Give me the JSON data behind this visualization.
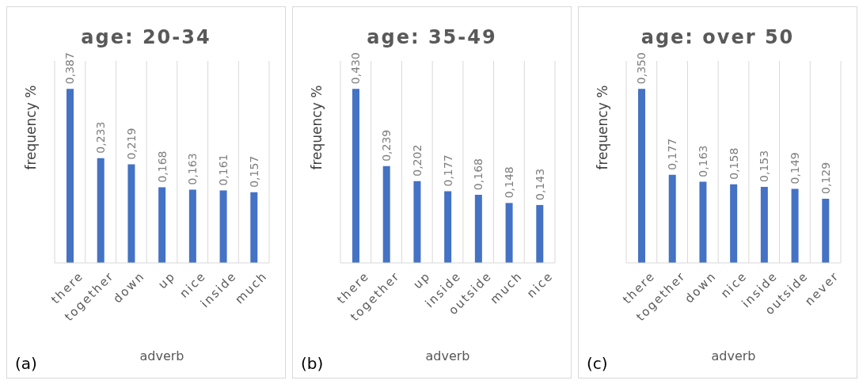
{
  "chart_data": [
    {
      "type": "bar",
      "title": "age: 20-34",
      "xlabel": "adverb",
      "ylabel": "frequency %",
      "categories": [
        "there",
        "together",
        "down",
        "up",
        "nice",
        "inside",
        "much"
      ],
      "values": [
        0.387,
        0.233,
        0.219,
        0.168,
        0.163,
        0.161,
        0.157
      ],
      "value_labels": [
        "0,387",
        "0,233",
        "0,219",
        "0,168",
        "0,163",
        "0,161",
        "0,157"
      ],
      "color": "#4472c4",
      "grid": "x",
      "annotations": [
        "(a)"
      ]
    },
    {
      "type": "bar",
      "title": "age: 35-49",
      "xlabel": "adverb",
      "ylabel": "frequency %",
      "categories": [
        "there",
        "together",
        "up",
        "inside",
        "outside",
        "much",
        "nice"
      ],
      "values": [
        0.43,
        0.239,
        0.202,
        0.177,
        0.168,
        0.148,
        0.143
      ],
      "value_labels": [
        "0,430",
        "0,239",
        "0,202",
        "0,177",
        "0,168",
        "0,148",
        "0,143"
      ],
      "color": "#4472c4",
      "grid": "x",
      "annotations": [
        "(b)"
      ]
    },
    {
      "type": "bar",
      "title": "age: over 50",
      "xlabel": "adverb",
      "ylabel": "frequency %",
      "categories": [
        "there",
        "together",
        "down",
        "nice",
        "inside",
        "outside",
        "never"
      ],
      "values": [
        0.35,
        0.177,
        0.163,
        0.158,
        0.153,
        0.149,
        0.129
      ],
      "value_labels": [
        "0,350",
        "0,177",
        "0,163",
        "0,158",
        "0,153",
        "0,149",
        "0,129"
      ],
      "color": "#4472c4",
      "grid": "x",
      "annotations": [
        "(c)"
      ]
    }
  ]
}
